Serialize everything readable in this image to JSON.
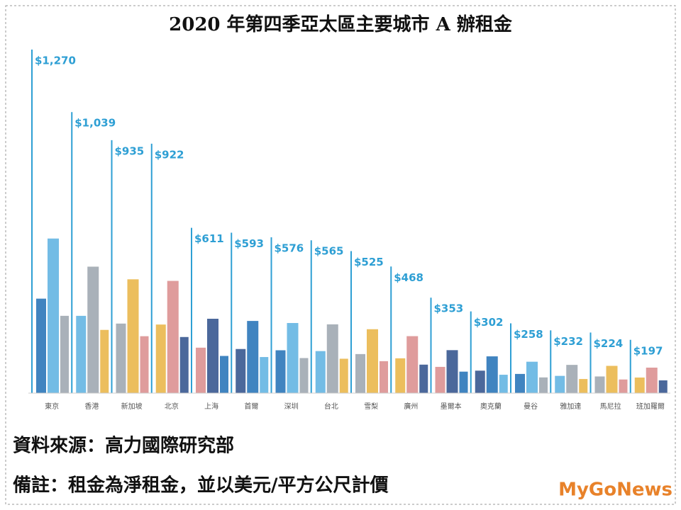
{
  "chart_data": {
    "type": "bar",
    "title": "2020 年第四季亞太區主要城市 A 辦租金",
    "categories": [
      "東京",
      "香港",
      "新加坡",
      "北京",
      "上海",
      "首爾",
      "深圳",
      "台北",
      "雪梨",
      "廣州",
      "墨爾本",
      "奧克蘭",
      "曼谷",
      "雅加達",
      "馬尼拉",
      "班加羅爾"
    ],
    "values": [
      1270,
      1039,
      935,
      922,
      611,
      593,
      576,
      565,
      525,
      468,
      353,
      302,
      258,
      232,
      224,
      197
    ],
    "value_labels": [
      "$1,270",
      "$1,039",
      "$935",
      "$922",
      "$611",
      "$593",
      "$576",
      "$565",
      "$525",
      "$468",
      "$353",
      "$302",
      "$258",
      "$232",
      "$224",
      "$197"
    ],
    "color": "#2e9fd4"
  },
  "notes": {
    "source": "資料來源：高力國際研究部",
    "remark": "備註：租金為淨租金，並以美元/平方公尺計價"
  },
  "watermark": "MyGoNews"
}
